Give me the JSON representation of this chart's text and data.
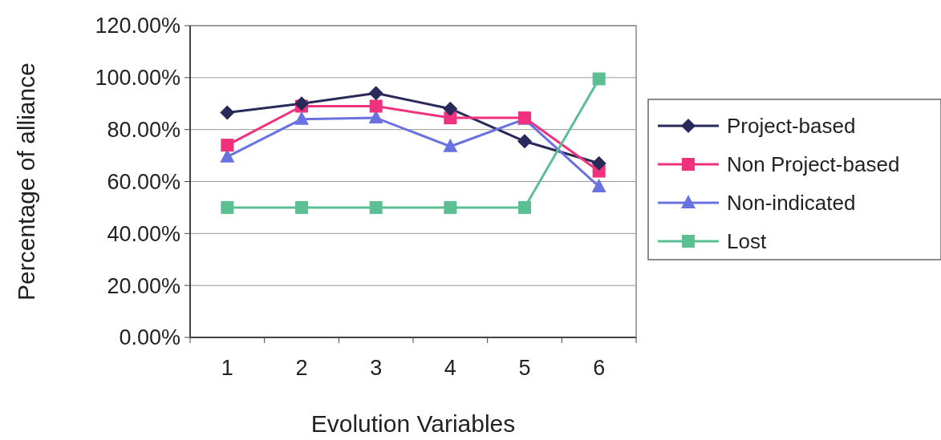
{
  "chart_data": {
    "type": "line",
    "xlabel": "Evolution Variables",
    "ylabel": "Percentage of alliance",
    "categories": [
      "1",
      "2",
      "3",
      "4",
      "5",
      "6"
    ],
    "series": [
      {
        "name": "Project-based",
        "color": "#2a2a5a",
        "marker": "diamond",
        "values": [
          86.5,
          90,
          94,
          88,
          75.5,
          67
        ]
      },
      {
        "name": "Non Project-based",
        "color": "#f0327e",
        "marker": "square",
        "values": [
          74,
          89,
          89,
          84.5,
          84.5,
          64
        ]
      },
      {
        "name": "Non-indicated",
        "color": "#6a72e0",
        "marker": "triangle",
        "values": [
          69.5,
          84,
          84.5,
          73.5,
          84,
          58
        ]
      },
      {
        "name": "Lost",
        "color": "#5cbf93",
        "marker": "square",
        "values": [
          50,
          50,
          50,
          50,
          50,
          99.5
        ]
      }
    ],
    "ylim": [
      0,
      120
    ],
    "yticks": [
      {
        "value": 0,
        "label": "0.00%"
      },
      {
        "value": 20,
        "label": "20.00%"
      },
      {
        "value": 40,
        "label": "40.00%"
      },
      {
        "value": 60,
        "label": "60.00%"
      },
      {
        "value": 80,
        "label": "80.00%"
      },
      {
        "value": 100,
        "label": "100.00%"
      },
      {
        "value": 120,
        "label": "120.00%"
      }
    ],
    "grid": "y",
    "legend": "right"
  }
}
